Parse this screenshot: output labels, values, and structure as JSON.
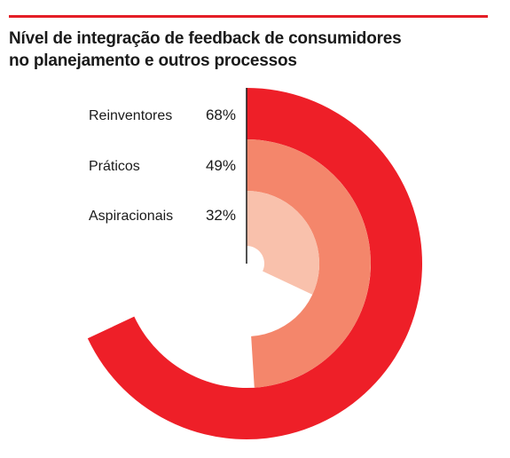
{
  "title": {
    "line1": "Nível de integração de feedback de consumidores",
    "line2": "no planejamento e outros processos"
  },
  "colors": {
    "accent_rule": "#e41e26",
    "series": [
      "#ee1f28",
      "#f4866b",
      "#f9c1ac"
    ]
  },
  "chart_data": {
    "type": "radial-bar",
    "title": "Nível de integração de feedback de consumidores no planejamento e outros processos",
    "max": 100,
    "start_angle": "12 o'clock",
    "direction": "clockwise",
    "categories": [
      "Reinventores",
      "Práticos",
      "Aspiracionais"
    ],
    "values": [
      68,
      49,
      32
    ],
    "value_labels": [
      "68%",
      "49%",
      "32%"
    ],
    "value_unit": "%"
  }
}
